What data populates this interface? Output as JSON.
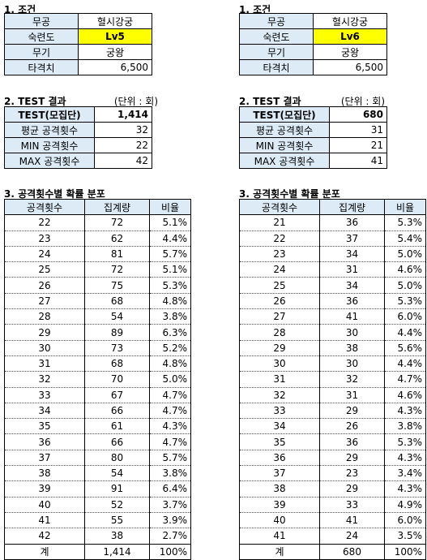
{
  "sections": {
    "conditions": "1. 조건",
    "test": "2. TEST 결과",
    "unit": "(단위 : 회)",
    "distribution": "3. 공격횟수별 확률 분포"
  },
  "left": {
    "conditions": [
      {
        "label": "무공",
        "value": "혈시강궁"
      },
      {
        "label": "숙련도",
        "value": "Lv5"
      },
      {
        "label": "무기",
        "value": "궁왕"
      },
      {
        "label": "타격치",
        "value": "6,500"
      }
    ],
    "test": [
      {
        "label": "TEST(모집단)",
        "value": "1,414"
      },
      {
        "label": "평균 공격횟수",
        "value": "32"
      },
      {
        "label": "MIN 공격횟수",
        "value": "22"
      },
      {
        "label": "MAX 공격횟수",
        "value": "42"
      }
    ],
    "dist_header": [
      "공격횟수",
      "집계량",
      "비율"
    ],
    "dist_rows": [
      [
        "22",
        "72",
        "5.1%"
      ],
      [
        "23",
        "62",
        "4.4%"
      ],
      [
        "24",
        "81",
        "5.7%"
      ],
      [
        "25",
        "72",
        "5.1%"
      ],
      [
        "26",
        "75",
        "5.3%"
      ],
      [
        "27",
        "68",
        "4.8%"
      ],
      [
        "28",
        "54",
        "3.8%"
      ],
      [
        "29",
        "89",
        "6.3%"
      ],
      [
        "30",
        "73",
        "5.2%"
      ],
      [
        "31",
        "68",
        "4.8%"
      ],
      [
        "32",
        "70",
        "5.0%"
      ],
      [
        "33",
        "67",
        "4.7%"
      ],
      [
        "34",
        "66",
        "4.7%"
      ],
      [
        "35",
        "61",
        "4.3%"
      ],
      [
        "36",
        "66",
        "4.7%"
      ],
      [
        "37",
        "80",
        "5.7%"
      ],
      [
        "38",
        "54",
        "3.8%"
      ],
      [
        "39",
        "91",
        "6.4%"
      ],
      [
        "40",
        "52",
        "3.7%"
      ],
      [
        "41",
        "55",
        "3.9%"
      ],
      [
        "42",
        "38",
        "2.7%"
      ]
    ],
    "dist_total": [
      "계",
      "1,414",
      "100%"
    ]
  },
  "right": {
    "conditions": [
      {
        "label": "무공",
        "value": "혈시강궁"
      },
      {
        "label": "숙련도",
        "value": "Lv6"
      },
      {
        "label": "무기",
        "value": "궁왕"
      },
      {
        "label": "타격치",
        "value": "6,500"
      }
    ],
    "test": [
      {
        "label": "TEST(모집단)",
        "value": "680"
      },
      {
        "label": "평균 공격횟수",
        "value": "31"
      },
      {
        "label": "MIN 공격횟수",
        "value": "21"
      },
      {
        "label": "MAX 공격횟수",
        "value": "41"
      }
    ],
    "dist_header": [
      "공격횟수",
      "집계량",
      "비율"
    ],
    "dist_rows": [
      [
        "21",
        "36",
        "5.3%"
      ],
      [
        "22",
        "37",
        "5.4%"
      ],
      [
        "23",
        "34",
        "5.0%"
      ],
      [
        "24",
        "31",
        "4.6%"
      ],
      [
        "25",
        "34",
        "5.0%"
      ],
      [
        "26",
        "36",
        "5.3%"
      ],
      [
        "27",
        "41",
        "6.0%"
      ],
      [
        "28",
        "30",
        "4.4%"
      ],
      [
        "29",
        "38",
        "5.6%"
      ],
      [
        "30",
        "30",
        "4.4%"
      ],
      [
        "31",
        "32",
        "4.7%"
      ],
      [
        "32",
        "31",
        "4.6%"
      ],
      [
        "33",
        "29",
        "4.3%"
      ],
      [
        "34",
        "26",
        "3.8%"
      ],
      [
        "35",
        "36",
        "5.3%"
      ],
      [
        "36",
        "29",
        "4.3%"
      ],
      [
        "37",
        "23",
        "3.4%"
      ],
      [
        "38",
        "29",
        "4.3%"
      ],
      [
        "39",
        "33",
        "4.9%"
      ],
      [
        "40",
        "41",
        "6.0%"
      ],
      [
        "41",
        "24",
        "3.5%"
      ]
    ],
    "dist_total": [
      "계",
      "680",
      "100%"
    ]
  }
}
